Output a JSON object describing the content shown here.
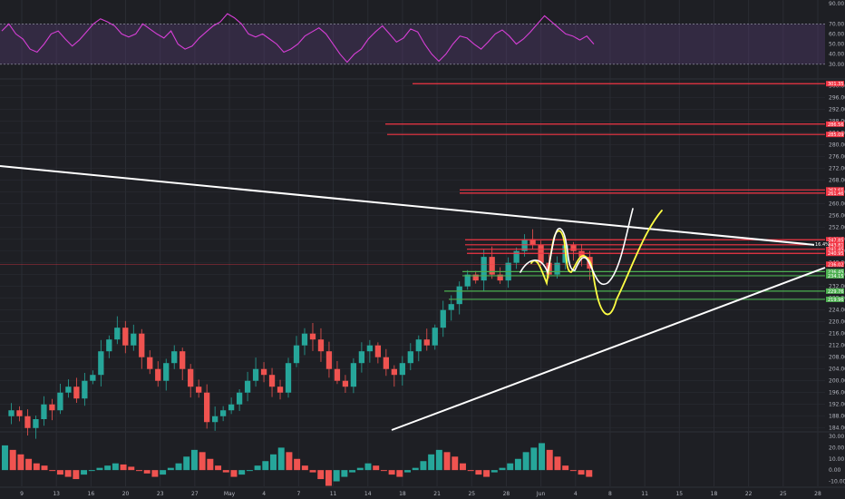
{
  "chart_data": {
    "type": "candlestick",
    "colors": {
      "background": "#1e1f24",
      "grid": "#2a2c33",
      "up": "#26a69a",
      "down": "#ef5350",
      "rsi": "#d63fd6",
      "rsi_band": "#5c3f7a",
      "red_line": "#f23645",
      "green_line": "#4caf50",
      "trendline": "#ffffff",
      "drawing_yellow": "#ffff44",
      "drawing_white": "#ffffff"
    },
    "x_labels": [
      "9",
      "13",
      "16",
      "20",
      "23",
      "27",
      "May",
      "4",
      "7",
      "11",
      "14",
      "18",
      "21",
      "25",
      "28",
      "Jun",
      "4",
      "8",
      "11",
      "15",
      "18",
      "22",
      "25",
      "28"
    ],
    "rsi": {
      "ticks": [
        "90.00",
        "70.00",
        "60.00",
        "50.00",
        "40.00",
        "30.00"
      ],
      "upper": 70,
      "lower": 30,
      "values": [
        63,
        70,
        60,
        55,
        45,
        42,
        50,
        60,
        63,
        55,
        48,
        54,
        62,
        70,
        75,
        72,
        68,
        60,
        57,
        60,
        70,
        65,
        60,
        56,
        63,
        50,
        45,
        48,
        56,
        62,
        68,
        72,
        80,
        76,
        70,
        60,
        57,
        60,
        55,
        50,
        42,
        45,
        50,
        58,
        62,
        66,
        60,
        50,
        40,
        32,
        40,
        45,
        55,
        62,
        68,
        60,
        52,
        56,
        65,
        62,
        50,
        40,
        33,
        40,
        50,
        58,
        56,
        50,
        45,
        52,
        60,
        64,
        58,
        50,
        55,
        62,
        70,
        78,
        72,
        66,
        60,
        58,
        54,
        58,
        50
      ]
    },
    "price": {
      "ticks": [
        "300.00",
        "296.00",
        "292.00",
        "288.00",
        "284.00",
        "280.00",
        "276.00",
        "272.00",
        "268.00",
        "264.00",
        "260.00",
        "256.00",
        "252.00",
        "248.00",
        "244.00",
        "240.00",
        "236.00",
        "232.00",
        "228.00",
        "224.00",
        "220.00",
        "216.00",
        "212.00",
        "208.00",
        "204.00",
        "200.00",
        "196.00",
        "192.00",
        "188.00",
        "184.00"
      ],
      "closes": [
        190,
        188,
        184,
        187,
        192,
        190,
        196,
        198,
        194,
        200,
        202,
        210,
        214,
        218,
        212,
        216,
        208,
        204,
        200,
        206,
        210,
        204,
        198,
        196,
        186,
        188,
        190,
        192,
        196,
        200,
        204,
        202,
        198,
        196,
        206,
        212,
        216,
        214,
        210,
        204,
        200,
        198,
        206,
        210,
        212,
        208,
        204,
        202,
        206,
        210,
        214,
        212,
        218,
        224,
        226,
        232,
        236,
        234,
        242,
        236,
        234,
        240,
        244,
        248,
        246,
        240,
        236,
        240,
        246,
        244,
        242,
        238
      ],
      "red_levels": [
        {
          "value": 300.7,
          "label": "301.35"
        },
        {
          "value": 287.0,
          "label": "286.56"
        },
        {
          "value": 283.5,
          "label": "285.09"
        },
        {
          "value": 264.7,
          "label": "263.65"
        },
        {
          "value": 263.6,
          "label": "261.46"
        },
        {
          "value": 247.8,
          "label": "247.85"
        },
        {
          "value": 246.1,
          "label": "243.81"
        },
        {
          "value": 244.6,
          "label": "241.45"
        },
        {
          "value": 243.2,
          "label": "240.95"
        }
      ],
      "green_levels": [
        {
          "value": 237.0,
          "label": "236.45"
        },
        {
          "value": 235.6,
          "label": "234.15"
        },
        {
          "value": 230.4,
          "label": "229.76"
        },
        {
          "value": 227.6,
          "label": "219.96"
        }
      ],
      "last_price_label": "236.02",
      "trendline_label": "16.4%"
    },
    "volume": {
      "ticks": [
        "30.00",
        "20.00",
        "10.00",
        "0.00",
        "-10.00"
      ],
      "values": [
        22,
        18,
        14,
        10,
        6,
        4,
        0,
        -4,
        -6,
        -8,
        -4,
        0,
        2,
        4,
        6,
        5,
        3,
        0,
        -3,
        -6,
        -4,
        2,
        6,
        12,
        18,
        16,
        10,
        4,
        -2,
        -6,
        -4,
        0,
        4,
        8,
        14,
        20,
        16,
        10,
        4,
        -2,
        -8,
        -14,
        -10,
        -6,
        -2,
        2,
        6,
        4,
        0,
        -4,
        -6,
        -2,
        2,
        8,
        14,
        18,
        16,
        12,
        6,
        0,
        -4,
        -6,
        -2,
        2,
        6,
        10,
        16,
        20,
        24,
        18,
        12,
        4,
        0,
        -4,
        -6
      ]
    }
  }
}
